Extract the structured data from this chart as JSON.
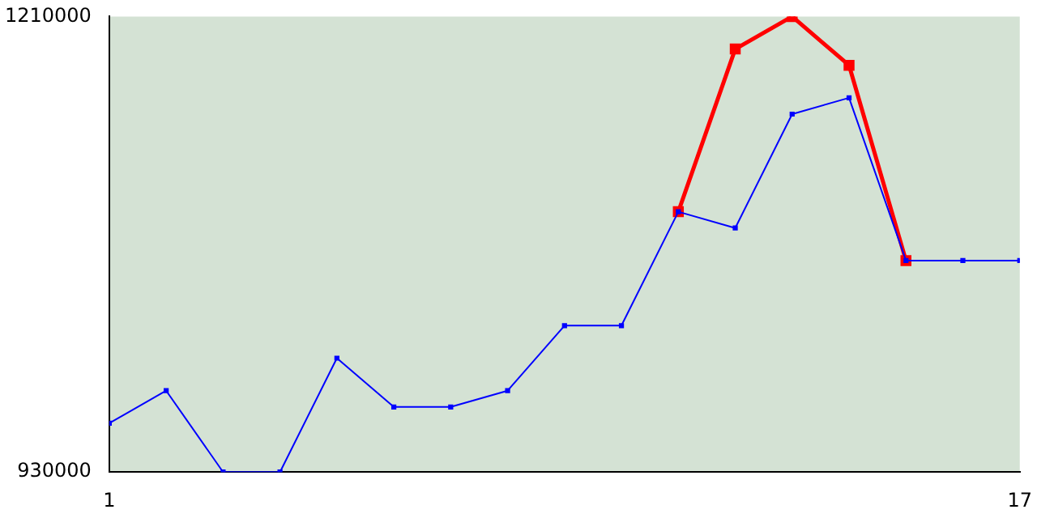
{
  "chart_data": {
    "type": "line",
    "x": [
      1,
      2,
      3,
      4,
      5,
      6,
      7,
      8,
      9,
      10,
      11,
      12,
      13,
      14,
      15,
      16,
      17
    ],
    "series": [
      {
        "color": "#ff0000",
        "values": [
          null,
          null,
          null,
          null,
          null,
          null,
          null,
          null,
          null,
          null,
          1090000,
          1190000,
          1210000,
          1180000,
          1060000,
          null,
          null
        ]
      },
      {
        "color": "#0000ff",
        "values": [
          960000,
          980000,
          930000,
          930000,
          1000000,
          970000,
          970000,
          980000,
          1020000,
          1020000,
          1090000,
          1080000,
          1150000,
          1160000,
          1060000,
          1060000,
          1060000
        ]
      }
    ],
    "xlim": [
      1,
      17
    ],
    "xticks": [
      1,
      17
    ],
    "ylim": [
      930000,
      1210000
    ],
    "yticks": [
      930000,
      1210000
    ],
    "grid": false,
    "legend": false,
    "marker": "square",
    "line_style": "solid"
  }
}
